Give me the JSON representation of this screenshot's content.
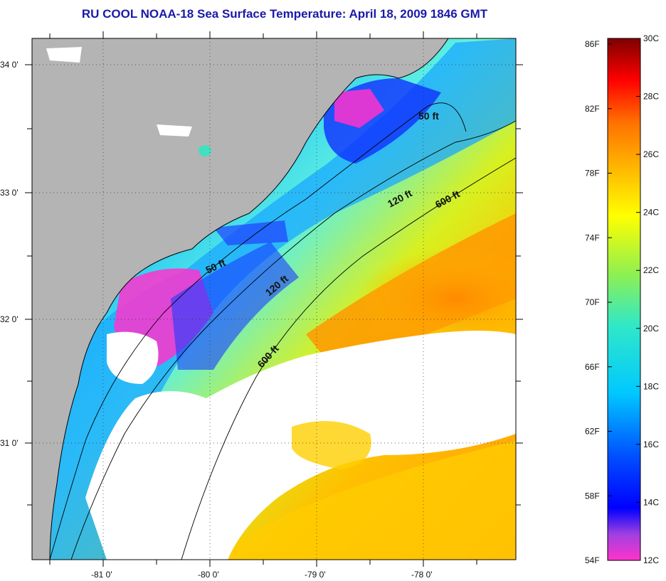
{
  "title": "RU COOL  NOAA-18  Sea Surface Temperature:  April 18, 2009 1846 GMT",
  "lat_labels": [
    "34 0'",
    "33 0'",
    "32 0'",
    "31 0'"
  ],
  "lon_labels": [
    "-81 0'",
    "-80 0'",
    "-79 0'",
    "-78 0'"
  ],
  "isobaths": [
    "50 ft",
    "120 ft",
    "600 ft"
  ],
  "colorbar": {
    "f_labels": [
      "86F",
      "82F",
      "78F",
      "74F",
      "70F",
      "66F",
      "62F",
      "58F",
      "54F"
    ],
    "c_labels": [
      "30C",
      "28C",
      "26C",
      "24C",
      "22C",
      "20C",
      "18C",
      "16C",
      "14C",
      "12C"
    ]
  },
  "colors": {
    "land": "#b4b4b4",
    "cloud": "#ffffff",
    "title": "#1a1aa8"
  }
}
